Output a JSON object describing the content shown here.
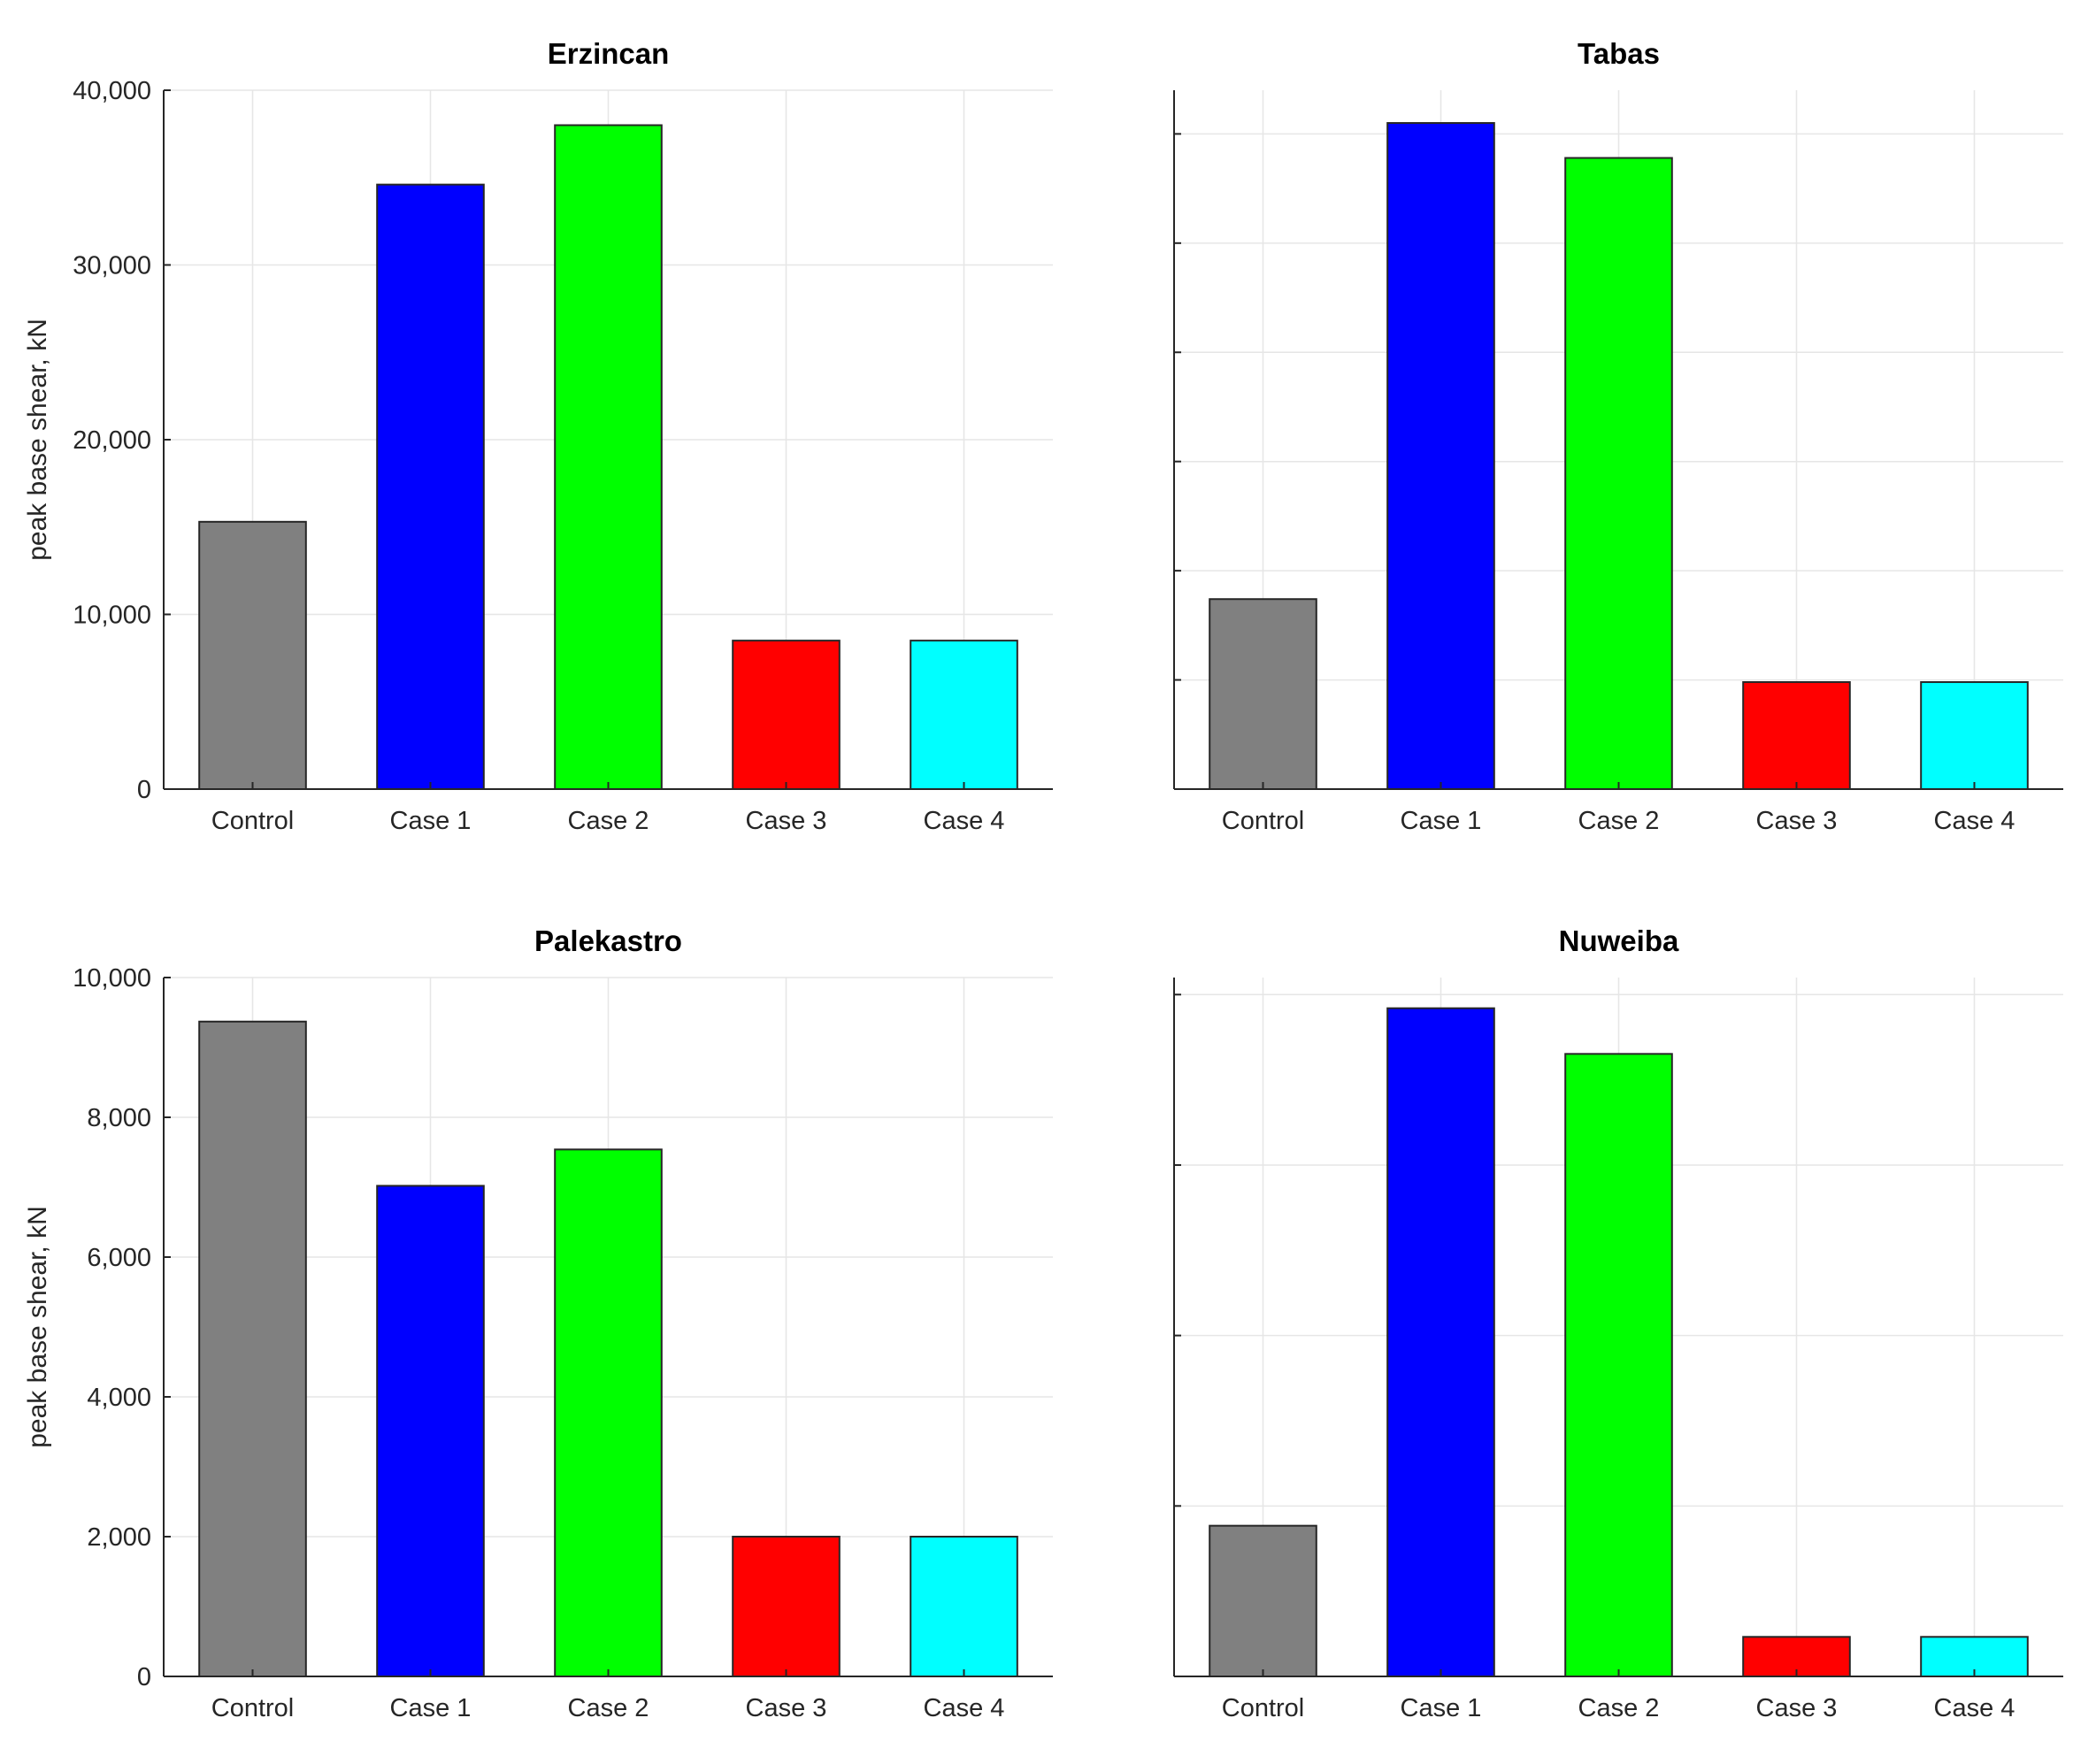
{
  "chart_data": [
    {
      "type": "bar",
      "title": "Erzincan",
      "categories": [
        "Control",
        "Case 1",
        "Case 2",
        "Case 3",
        "Case 4"
      ],
      "values": [
        15300,
        34600,
        38000,
        8500,
        8500
      ],
      "colors": [
        "#808080",
        "#0000ff",
        "#00ff00",
        "#ff0000",
        "#00ffff"
      ],
      "ylabel": "peak base shear, kN",
      "ylim": [
        0,
        40000
      ],
      "yticks": [
        0,
        10000,
        20000,
        30000,
        40000
      ],
      "ytick_labels": [
        "0",
        "10,000",
        "20,000",
        "30,000",
        "40,000"
      ],
      "grid": true
    },
    {
      "type": "bar",
      "title": "Tabas",
      "categories": [
        "Control",
        "Case 1",
        "Case 2",
        "Case 3",
        "Case 4"
      ],
      "values": [
        8700,
        30500,
        28900,
        4900,
        4900
      ],
      "colors": [
        "#808080",
        "#0000ff",
        "#00ff00",
        "#ff0000",
        "#00ffff"
      ],
      "ylabel": "",
      "ylim": [
        0,
        32000
      ],
      "yticks": [
        0,
        5000,
        10000,
        15000,
        20000,
        25000,
        30000
      ],
      "ytick_labels": [],
      "grid": true
    },
    {
      "type": "bar",
      "title": "Palekastro",
      "categories": [
        "Control",
        "Case 1",
        "Case 2",
        "Case 3",
        "Case 4"
      ],
      "values": [
        9370,
        7020,
        7540,
        2000,
        2000
      ],
      "colors": [
        "#808080",
        "#0000ff",
        "#00ff00",
        "#ff0000",
        "#00ffff"
      ],
      "ylabel": "peak base shear, kN",
      "ylim": [
        0,
        10000
      ],
      "yticks": [
        0,
        2000,
        4000,
        6000,
        8000,
        10000
      ],
      "ytick_labels": [
        "0",
        "2,000",
        "4,000",
        "6,000",
        "8,000",
        "10,000"
      ],
      "grid": true
    },
    {
      "type": "bar",
      "title": "Nuweiba",
      "categories": [
        "Control",
        "Case 1",
        "Case 2",
        "Case 3",
        "Case 4"
      ],
      "values": [
        2210,
        9800,
        9130,
        580,
        580
      ],
      "colors": [
        "#808080",
        "#0000ff",
        "#00ff00",
        "#ff0000",
        "#00ffff"
      ],
      "ylabel": "",
      "ylim": [
        0,
        10250
      ],
      "yticks": [
        0,
        2500,
        5000,
        7500,
        10000
      ],
      "ytick_labels": [],
      "grid": true
    }
  ]
}
